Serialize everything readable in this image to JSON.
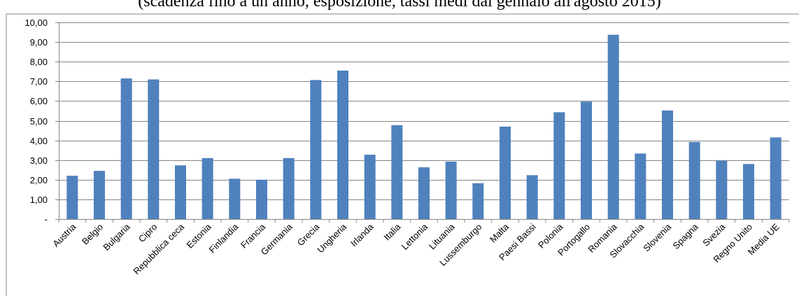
{
  "chart_data": {
    "type": "bar",
    "subtitle": "(scadenza fino a un anno, esposizione, tassi medi dal gennaio all'agosto 2015)",
    "categories": [
      "Austria",
      "Belgio",
      "Bulgaria",
      "Cipro",
      "Repubblica ceca",
      "Estonia",
      "Finlandia",
      "Francia",
      "Germania",
      "Grecia",
      "Ungheria",
      "Irlanda",
      "Italia",
      "Lettonia",
      "Lituania",
      "Lussemburgo",
      "Malta",
      "Paesi Bassi",
      "Polonia",
      "Portogallo",
      "Romania",
      "Slovacchia",
      "Slovenia",
      "Spagna",
      "Svezia",
      "Regno Unito",
      "Media UE"
    ],
    "values": [
      2.2,
      2.45,
      7.15,
      7.1,
      2.73,
      3.1,
      2.05,
      2.0,
      3.1,
      7.07,
      7.55,
      3.27,
      4.77,
      2.63,
      2.92,
      1.82,
      4.7,
      2.23,
      5.43,
      5.97,
      9.37,
      3.33,
      5.52,
      3.92,
      2.97,
      2.8,
      4.15
    ],
    "yticks": [
      "-",
      "1,00",
      "2,00",
      "3,00",
      "4,00",
      "5,00",
      "6,00",
      "7,00",
      "8,00",
      "9,00",
      "10,00"
    ],
    "ylim": [
      0,
      10
    ],
    "grid": true,
    "bar_color": "#4F81BD",
    "grid_color": "#868686"
  }
}
